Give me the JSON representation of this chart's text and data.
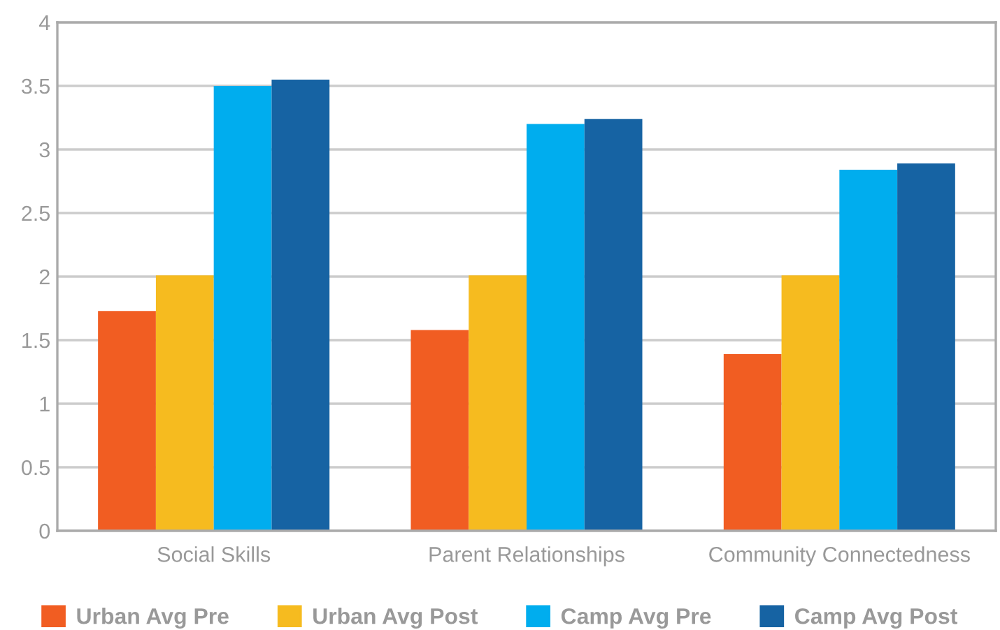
{
  "chart_data": {
    "type": "bar",
    "categories": [
      "Social Skills",
      "Parent Relationships",
      "Community Connectedness"
    ],
    "series": [
      {
        "name": "Urban Avg Pre",
        "color": "#f15d22",
        "values": [
          1.73,
          1.58,
          1.39
        ]
      },
      {
        "name": "Urban Avg Post",
        "color": "#f6bb1f",
        "values": [
          2.01,
          2.01,
          2.01
        ]
      },
      {
        "name": "Camp Avg Pre",
        "color": "#00adee",
        "values": [
          3.5,
          3.2,
          2.84
        ]
      },
      {
        "name": "Camp Avg Post",
        "color": "#1663a3",
        "values": [
          3.55,
          3.24,
          2.89
        ]
      }
    ],
    "ylim": [
      0,
      4
    ],
    "yticks": [
      0,
      0.5,
      1,
      1.5,
      2,
      2.5,
      3,
      3.5,
      4
    ],
    "grid": "y",
    "legend": "bottom"
  }
}
